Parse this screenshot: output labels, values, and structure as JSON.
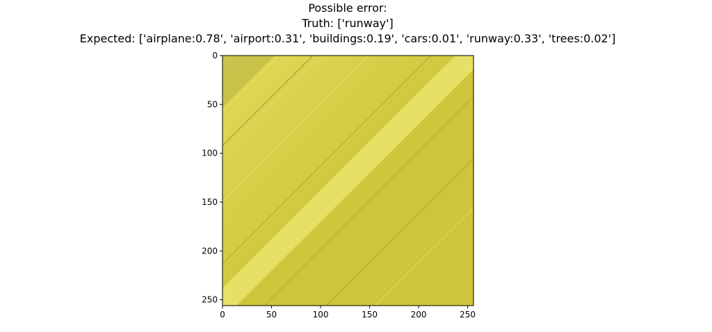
{
  "title": {
    "line1": "Possible error:",
    "line2": "Truth: ['runway']",
    "line3": "Expected: ['airplane:0.78', 'airport:0.31', 'buildings:0.19', 'cars:0.01', 'runway:0.33', 'trees:0.02']"
  },
  "chart_data": {
    "type": "image",
    "title": "Possible error:\nTruth: ['runway']\nExpected: ['airplane:0.78', 'airport:0.31', 'buildings:0.19', 'cars:0.01', 'runway:0.33', 'trees:0.02']",
    "truth": [
      "runway"
    ],
    "expected": [
      {
        "label": "airplane",
        "score": 0.78
      },
      {
        "label": "airport",
        "score": 0.31
      },
      {
        "label": "buildings",
        "score": 0.19
      },
      {
        "label": "cars",
        "score": 0.01
      },
      {
        "label": "runway",
        "score": 0.33
      },
      {
        "label": "trees",
        "score": 0.02
      }
    ],
    "xlim": [
      0,
      256
    ],
    "ylim": [
      256,
      0
    ],
    "x_ticks": [
      0,
      50,
      100,
      150,
      200,
      250
    ],
    "y_ticks": [
      0,
      50,
      100,
      150,
      200,
      250
    ],
    "y_inverted": true,
    "grid": false,
    "image_colors": {
      "base": "#cfc53a",
      "light": "#e3dc5c",
      "dark": "#9e9830",
      "stripe": "#e8e36a"
    }
  }
}
